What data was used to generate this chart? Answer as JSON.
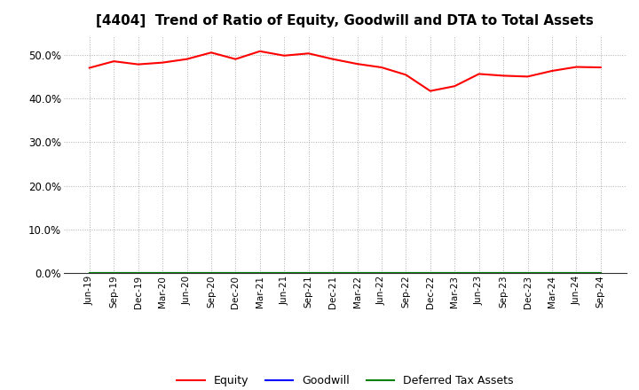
{
  "title": "[4404]  Trend of Ratio of Equity, Goodwill and DTA to Total Assets",
  "x_labels": [
    "Jun-19",
    "Sep-19",
    "Dec-19",
    "Mar-20",
    "Jun-20",
    "Sep-20",
    "Dec-20",
    "Mar-21",
    "Jun-21",
    "Sep-21",
    "Dec-21",
    "Mar-22",
    "Jun-22",
    "Sep-22",
    "Dec-22",
    "Mar-23",
    "Jun-23",
    "Sep-23",
    "Dec-23",
    "Mar-24",
    "Jun-24",
    "Sep-24"
  ],
  "equity": [
    0.47,
    0.485,
    0.478,
    0.482,
    0.49,
    0.505,
    0.49,
    0.508,
    0.498,
    0.503,
    0.49,
    0.479,
    0.471,
    0.454,
    0.417,
    0.428,
    0.456,
    0.452,
    0.45,
    0.463,
    0.472,
    0.471
  ],
  "goodwill": [
    0.0,
    0.0,
    0.0,
    0.0,
    0.0,
    0.0,
    0.0,
    0.0,
    0.0,
    0.0,
    0.0,
    0.0,
    0.0,
    0.0,
    0.0,
    0.0,
    0.0,
    0.0,
    0.0,
    0.0,
    0.0,
    0.0
  ],
  "dta": [
    0.0,
    0.0,
    0.0,
    0.0,
    0.0,
    0.0,
    0.0,
    0.0,
    0.0,
    0.0,
    0.0,
    0.0,
    0.0,
    0.0,
    0.0,
    0.0,
    0.0,
    0.0,
    0.0,
    0.0,
    0.0,
    0.0
  ],
  "equity_color": "#ff0000",
  "goodwill_color": "#0000ff",
  "dta_color": "#008000",
  "ylim": [
    0.0,
    0.545
  ],
  "yticks": [
    0.0,
    0.1,
    0.2,
    0.3,
    0.4,
    0.5
  ],
  "background_color": "#ffffff",
  "plot_bg_color": "#ffffff",
  "grid_color": "#999999",
  "title_fontsize": 11,
  "legend_labels": [
    "Equity",
    "Goodwill",
    "Deferred Tax Assets"
  ]
}
